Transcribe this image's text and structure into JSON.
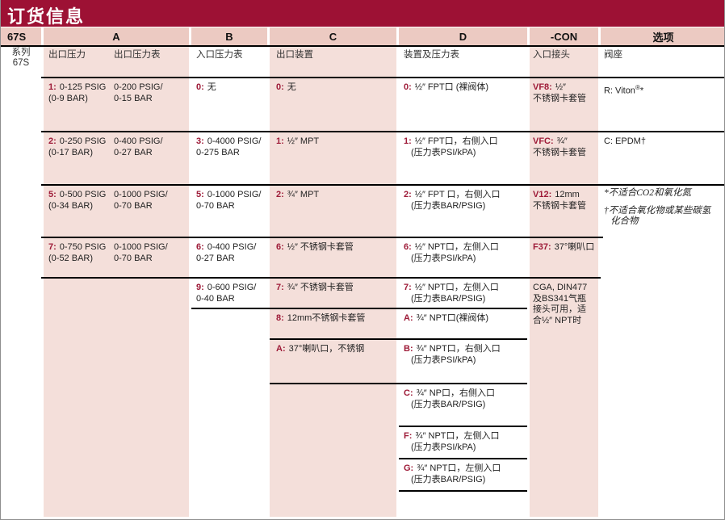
{
  "theme": {
    "banner_bg": "#9d1134",
    "header_pink": "#eccac2",
    "cell_pink": "#f4dfda",
    "code_color": "#9e1b38",
    "line_color": "#000000"
  },
  "title": "订货信息",
  "header": {
    "letters": [
      {
        "key": "series",
        "label": "67S"
      },
      {
        "key": "a",
        "label": "A"
      },
      {
        "key": "b",
        "label": "B"
      },
      {
        "key": "c",
        "label": "C"
      },
      {
        "key": "d",
        "label": "D"
      },
      {
        "key": "con",
        "label": "-CON"
      },
      {
        "key": "opt",
        "label": "选项"
      }
    ],
    "subheaders": [
      {
        "key": "series",
        "label": "系列\n67S"
      },
      {
        "key": "a1",
        "label": "出口压力"
      },
      {
        "key": "a2",
        "label": "出口压力表"
      },
      {
        "key": "b",
        "label": "入口压力表"
      },
      {
        "key": "c",
        "label": "出口装置"
      },
      {
        "key": "d",
        "label": "装置及压力表"
      },
      {
        "key": "con",
        "label": "入口接头"
      },
      {
        "key": "opt",
        "label": "阀座"
      }
    ]
  },
  "columns": {
    "outlet_pressure": {
      "rows": [
        {
          "code": "1:",
          "pressure": "0-125 PSIG\n(0-9 BAR)",
          "gauge": "0-200 PSIG/\n0-15 BAR"
        },
        {
          "code": "2:",
          "pressure": "0-250 PSIG\n(0-17 BAR)",
          "gauge": "0-400 PSIG/\n0-27 BAR"
        },
        {
          "code": "5:",
          "pressure": "0-500 PSIG\n(0-34 BAR)",
          "gauge": "0-1000 PSIG/\n0-70 BAR"
        },
        {
          "code": "7:",
          "pressure": "0-750 PSIG\n(0-52 BAR)",
          "gauge": "0-1000 PSIG/\n0-70 BAR"
        }
      ]
    },
    "inlet_gauge": {
      "rows": [
        {
          "code": "0:",
          "text": "无"
        },
        {
          "code": "3:",
          "text": "0-4000 PSIG/\n0-275 BAR"
        },
        {
          "code": "5:",
          "text": "0-1000 PSIG/\n0-70 BAR"
        },
        {
          "code": "6:",
          "text": "0-400 PSIG/\n0-27 BAR"
        },
        {
          "code": "9:",
          "text": "0-600 PSIG/\n0-40 BAR"
        }
      ]
    },
    "outlet_device": {
      "rows": [
        {
          "code": "0:",
          "text": "无"
        },
        {
          "code": "1:",
          "text": "½″ MPT"
        },
        {
          "code": "2:",
          "text": "¾″ MPT"
        },
        {
          "code": "6:",
          "text": "½″ 不锈钢卡套管"
        },
        {
          "code": "7:",
          "text": "¾″ 不锈钢卡套管"
        },
        {
          "code": "8:",
          "text": "12mm不锈钢卡套管"
        },
        {
          "code": "A:",
          "text": "37°喇叭口，不锈钢"
        }
      ]
    },
    "device_gauge": {
      "rows": [
        {
          "code": "0:",
          "text": "½″ FPT口 (裸阀体)"
        },
        {
          "code": "1:",
          "text": "½″ FPT口，右侧入口",
          "sub": "(压力表PSI/kPA)"
        },
        {
          "code": "2:",
          "text": "½″ FPT 口，右侧入口",
          "sub": "(压力表BAR/PSIG)"
        },
        {
          "code": "6:",
          "text": "½″ NPT口，左侧入口",
          "sub": "(压力表PSI/kPA)"
        },
        {
          "code": "7:",
          "text": "½″ NPT口，左侧入口",
          "sub": "(压力表BAR/PSIG)"
        },
        {
          "code": "A:",
          "text": "¾″ NPT口(裸阀体)"
        },
        {
          "code": "B:",
          "text": "¾″ NPT口，右侧入口",
          "sub": "(压力表PSI/kPA)"
        },
        {
          "code": "C:",
          "text": "¾″ NP口，右侧入口",
          "sub": "(压力表BAR/PSIG)"
        },
        {
          "code": "F:",
          "text": "¾″ NPT口，左侧入口",
          "sub": "(压力表PSI/kPA)"
        },
        {
          "code": "G:",
          "text": "¾″ NPT口，左侧入口",
          "sub": "(压力表BAR/PSIG)"
        }
      ]
    },
    "inlet_connection": {
      "rows": [
        {
          "code": "VF8:",
          "text": "½″\n不锈钢卡套管"
        },
        {
          "code": "VFC:",
          "text": "¾″\n不锈钢卡套管"
        },
        {
          "code": "V12:",
          "text": "12mm\n不锈钢卡套管"
        },
        {
          "code": "F37:",
          "text": "37°喇叭口"
        }
      ],
      "cga_note": "CGA, DIN477\n及BS341气瓶\n接头可用，适\n合½″ NPT时"
    },
    "seat_options": {
      "viton_pre": "R: Viton",
      "viton_sup": "®",
      "viton_post": "*",
      "epdm": "C: EPDM†",
      "notes": [
        "*不适合CO2和氧化氮",
        "†不适合氧化物或某些碳氢\n化合物"
      ]
    }
  }
}
